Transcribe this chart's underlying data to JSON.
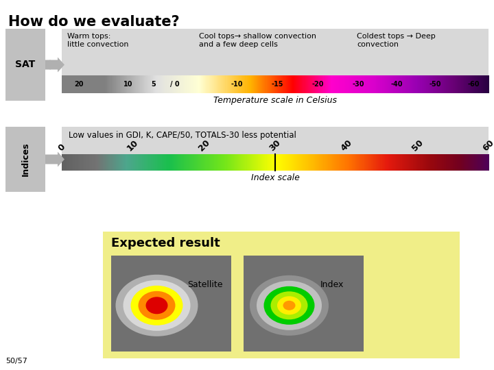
{
  "title": "How do we evaluate?",
  "bg_color": "#ffffff",
  "sat_label": "SAT",
  "indices_label": "Indices",
  "warm_tops_text": "Warm tops:\nlittle convection",
  "cool_tops_text": "Cool tops→ shallow convection\nand a few deep cells",
  "coldest_tops_text": "Coldest tops → Deep\nconvection",
  "temp_scale_label": "Temperature scale in Celsius",
  "indices_text": "Low values in GDI, K, CAPE/50, TOTALS-30 less potential",
  "index_scale_label": "Index scale",
  "index_ticks": [
    "0",
    "10",
    "20",
    "30",
    "40",
    "50",
    "60"
  ],
  "expected_result_title": "Expected result",
  "satellite_label": "Satellite",
  "index_label": "Index",
  "expected_bg": "#f0ee88",
  "page_number": "50/57"
}
